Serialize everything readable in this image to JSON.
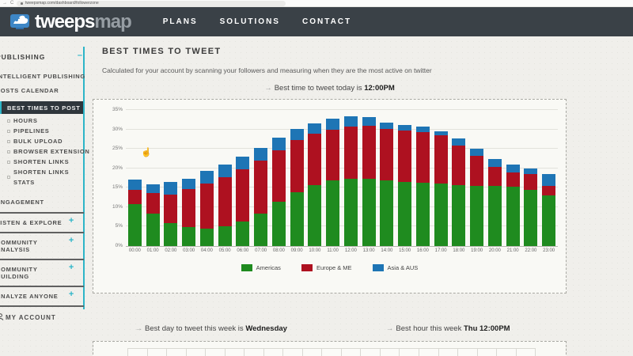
{
  "browser": {
    "url": "tweepsmap.com/dashboard/followerzone",
    "back_icon": "→",
    "reload_icon": "C"
  },
  "navbar": {
    "brand_bold": "tweeps",
    "brand_light": "map",
    "menu": [
      {
        "label": "PLANS"
      },
      {
        "label": "SOLUTIONS"
      },
      {
        "label": "CONTACT"
      }
    ]
  },
  "sidebar": {
    "accent_color": "#2cb5c8",
    "items": [
      {
        "label": "PUBLISHING",
        "type": "title",
        "icon": "minus"
      },
      {
        "label": "INTELLIGENT PUBLISHING",
        "type": "item"
      },
      {
        "label": "POSTS CALENDAR",
        "type": "item"
      },
      {
        "label": "BEST TIMES TO POST",
        "type": "sub",
        "selected": true
      },
      {
        "label": "HOURS",
        "type": "sub"
      },
      {
        "label": "PIPELINES",
        "type": "sub"
      },
      {
        "label": "BULK UPLOAD",
        "type": "sub"
      },
      {
        "label": "BROWSER EXTENSION",
        "type": "sub"
      },
      {
        "label": "SHORTEN LINKS",
        "type": "sub"
      },
      {
        "label": "SHORTEN LINKS STATS",
        "type": "sub"
      },
      {
        "label": "ENGAGEMENT",
        "type": "item gap-top"
      },
      {
        "label": "LISTEN & EXPLORE",
        "type": "section",
        "icon": "plus"
      },
      {
        "label": "COMMUNITY ANALYSIS",
        "type": "section",
        "icon": "plus"
      },
      {
        "label": "COMMUNITY BUILDING",
        "type": "section",
        "icon": "plus"
      },
      {
        "label": "ANALYZE ANYONE",
        "type": "section",
        "icon": "plus"
      },
      {
        "label": "MY ACCOUNT",
        "type": "account",
        "icon": "person"
      }
    ]
  },
  "main": {
    "title": "BEST TIMES TO TWEET",
    "subtitle": "Calculated for your account by scanning your followers and measuring when they are the most active on twitter",
    "best_today": {
      "arrow": "→",
      "prefix": "Best time to tweet today is",
      "value": "12:00PM"
    },
    "best_day": {
      "arrow": "→",
      "prefix": "Best day to tweet this week is",
      "value": "Wednesday"
    },
    "best_hour": {
      "arrow": "→",
      "prefix": "Best hour this week",
      "value": "Thu 12:00PM"
    }
  },
  "chart_data": {
    "type": "bar",
    "stacked": true,
    "title": "",
    "xlabel": "",
    "ylabel": "",
    "categories": [
      "00:00",
      "01:00",
      "02:00",
      "03:00",
      "04:00",
      "05:00",
      "06:00",
      "07:00",
      "08:00",
      "09:00",
      "10:00",
      "11:00",
      "12:00",
      "13:00",
      "14:00",
      "15:00",
      "16:00",
      "17:00",
      "18:00",
      "19:00",
      "20:00",
      "21:00",
      "22:00",
      "23:00"
    ],
    "series": [
      {
        "name": "Americas",
        "color": "#1f8b1f",
        "values": [
          10.7,
          8.3,
          6.0,
          4.9,
          4.4,
          5.0,
          6.4,
          8.3,
          11.3,
          13.8,
          15.6,
          16.8,
          17.2,
          17.3,
          16.8,
          16.4,
          16.2,
          16.1,
          15.6,
          15.5,
          15.5,
          15.3,
          14.5,
          13.1
        ]
      },
      {
        "name": "Europe & ME",
        "color": "#ae1120",
        "values": [
          3.7,
          5.3,
          7.2,
          9.7,
          11.7,
          12.8,
          13.3,
          13.7,
          13.4,
          13.5,
          13.2,
          13.2,
          13.5,
          13.7,
          13.4,
          13.3,
          13.1,
          12.3,
          10.3,
          7.7,
          4.9,
          3.7,
          4.0,
          2.4
        ]
      },
      {
        "name": "Asia & AUS",
        "color": "#1e75b5",
        "values": [
          2.8,
          2.3,
          3.2,
          2.8,
          3.2,
          3.2,
          3.2,
          3.3,
          3.1,
          2.9,
          2.8,
          2.7,
          2.6,
          2.1,
          1.6,
          1.5,
          1.4,
          1.1,
          1.7,
          1.8,
          1.9,
          2.0,
          1.4,
          3.1
        ]
      }
    ],
    "ylim": [
      0,
      35
    ],
    "y_tick_step": 5,
    "y_ticks": [
      "0%",
      "5%",
      "10%",
      "15%",
      "20%",
      "25%",
      "30%",
      "35%"
    ],
    "grid": true,
    "legend_position": "bottom"
  },
  "bottom_grid": {
    "cells": 21
  }
}
